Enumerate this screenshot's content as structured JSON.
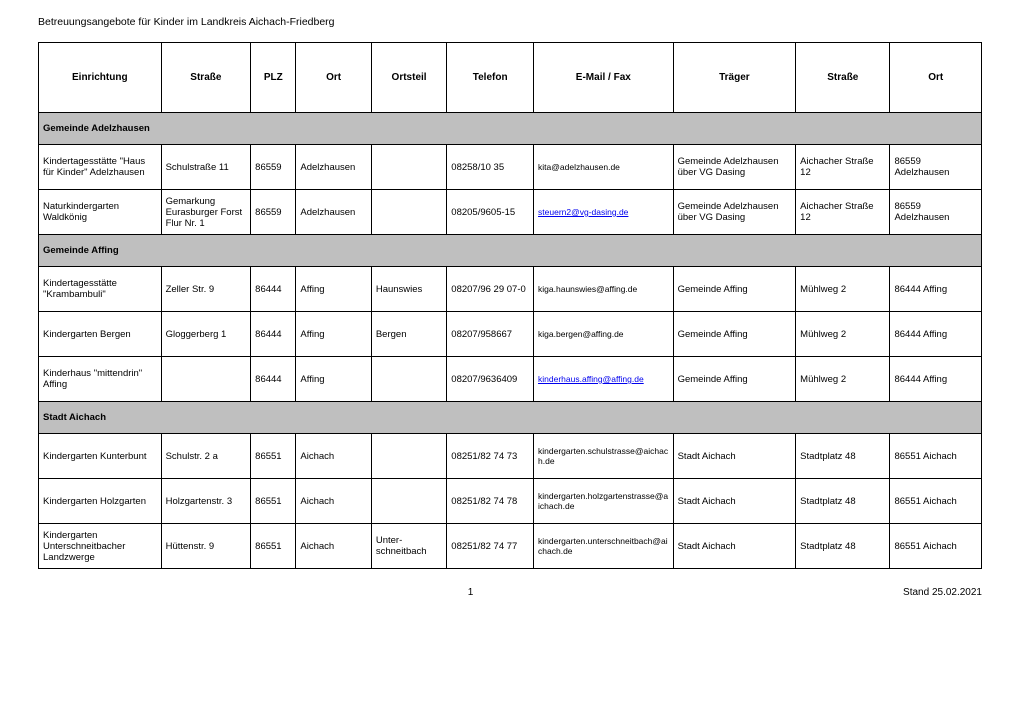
{
  "title": "Betreuungsangebote für Kinder im Landkreis Aichach-Friedberg",
  "columns": [
    "Einrichtung",
    "Straße",
    "PLZ",
    "Ort",
    "Ortsteil",
    "Telefon",
    "E-Mail / Fax",
    "Träger",
    "Straße",
    "Ort"
  ],
  "sections": [
    {
      "name": "Gemeinde Adelzhausen",
      "rows": [
        {
          "c": [
            "Kindertagesstätte  \"Haus für Kinder\"  Adelzhausen",
            "Schulstraße 11",
            "86559",
            "Adelzhausen",
            "",
            "08258/10 35",
            "kita@adelzhausen.de",
            "Gemeinde Adelzhausen über VG Dasing",
            "Aichacher Straße 12",
            "86559 Adelzhausen"
          ],
          "link": false
        },
        {
          "c": [
            "Naturkindergarten Waldkönig",
            "Gemarkung Eurasburger Forst Flur Nr. 1",
            "86559",
            "Adelzhausen",
            "",
            "08205/9605-15",
            "steuern2@vg-dasing.de",
            "Gemeinde Adelzhausen über VG Dasing",
            "Aichacher Straße 12",
            "86559 Adelzhausen"
          ],
          "link": true
        }
      ]
    },
    {
      "name": "Gemeinde Affing",
      "rows": [
        {
          "c": [
            "Kindertagesstätte \"Krambambuli\"",
            "Zeller Str. 9",
            "86444",
            "Affing",
            "Haunswies",
            "08207/96 29 07-0",
            "kiga.haunswies@affing.de",
            "Gemeinde Affing",
            "Mühlweg 2",
            "86444 Affing"
          ],
          "link": false
        },
        {
          "c": [
            "Kindergarten Bergen",
            "Gloggerberg 1",
            "86444",
            "Affing",
            "Bergen",
            "08207/958667",
            "kiga.bergen@affing.de",
            "Gemeinde Affing",
            "Mühlweg 2",
            "86444 Affing"
          ],
          "link": false
        },
        {
          "c": [
            "Kinderhaus \"mittendrin\" Affing",
            "",
            "86444",
            "Affing",
            "",
            "08207/9636409",
            "kinderhaus.affing@affing.de",
            "Gemeinde Affing",
            "Mühlweg 2",
            "86444 Affing"
          ],
          "link": true
        }
      ]
    },
    {
      "name": "Stadt Aichach",
      "rows": [
        {
          "c": [
            "Kindergarten Kunterbunt",
            "Schulstr. 2 a",
            "86551",
            "Aichach",
            "",
            "08251/82 74 73",
            "kindergarten.schulstrasse@aichach.de",
            "Stadt Aichach",
            "Stadtplatz 48",
            "86551 Aichach"
          ],
          "link": false
        },
        {
          "c": [
            "Kindergarten Holzgarten",
            "Holzgartenstr. 3",
            "86551",
            "Aichach",
            "",
            "08251/82 74 78",
            "kindergarten.holzgartenstrasse@aichach.de",
            "Stadt Aichach",
            "Stadtplatz 48",
            "86551 Aichach"
          ],
          "link": false
        },
        {
          "c": [
            "Kindergarten Unterschneitbacher Landzwerge",
            "Hüttenstr. 9",
            "86551",
            "Aichach",
            "Unter-schneitbach",
            "08251/82 74 77",
            "kindergarten.unterschneitbach@aichach.de",
            "Stadt Aichach",
            "Stadtplatz 48",
            "86551 Aichach"
          ],
          "link": false
        }
      ]
    }
  ],
  "footer": {
    "page": "1",
    "stand": "Stand 25.02.2021"
  },
  "colors": {
    "section_bg": "#bfbfbf",
    "border": "#000000",
    "link": "#0000ee"
  }
}
